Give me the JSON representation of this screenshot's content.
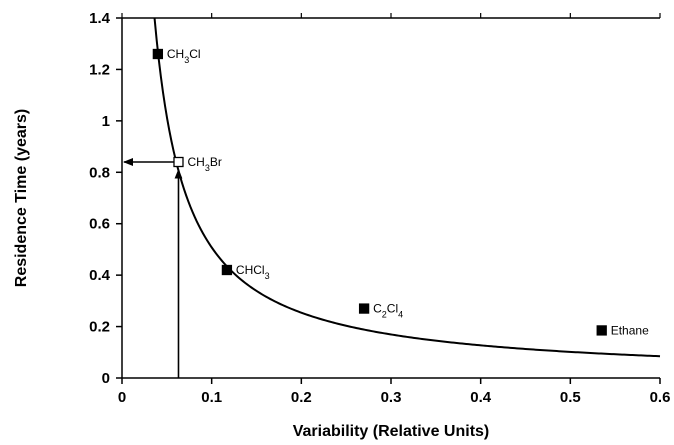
{
  "chart_data": {
    "type": "scatter",
    "xlabel": "Variability (Relative Units)",
    "ylabel": "Residence Time (years)",
    "xlim": [
      0,
      0.6
    ],
    "ylim": [
      0,
      1.4
    ],
    "x_ticks": [
      "0",
      "0.1",
      "0.2",
      "0.3",
      "0.4",
      "0.5",
      "0.6"
    ],
    "y_ticks": [
      "0",
      "0.2",
      "0.4",
      "0.6",
      "0.8",
      "1",
      "1.2",
      "1.4"
    ],
    "grid": false,
    "points": [
      {
        "label_html": "CH<tspan baseline-shift='sub' font-size='9'>3</tspan>Cl",
        "x": 0.04,
        "y": 1.26,
        "filled": true
      },
      {
        "label_html": "CH<tspan baseline-shift='sub' font-size='9'>3</tspan>Br",
        "x": 0.063,
        "y": 0.84,
        "filled": false
      },
      {
        "label_html": "CHCl<tspan baseline-shift='sub' font-size='9'>3</tspan>",
        "x": 0.117,
        "y": 0.42,
        "filled": true
      },
      {
        "label_html": "C<tspan baseline-shift='sub' font-size='9'>2</tspan>Cl<tspan baseline-shift='sub' font-size='9'>4</tspan>",
        "x": 0.27,
        "y": 0.27,
        "filled": true
      },
      {
        "label_html": "Ethane",
        "x": 0.535,
        "y": 0.185,
        "filled": true
      }
    ],
    "fit_curve": {
      "form": "y = a / x",
      "a": 0.0508,
      "x_range": [
        0.0363,
        0.6
      ]
    },
    "annotation_arrows": [
      {
        "from": [
          0.063,
          0
        ],
        "to": [
          0.063,
          0.81
        ],
        "direction": "up"
      },
      {
        "from": [
          0.063,
          0.84
        ],
        "to": [
          0,
          0.84
        ],
        "direction": "left"
      }
    ]
  }
}
